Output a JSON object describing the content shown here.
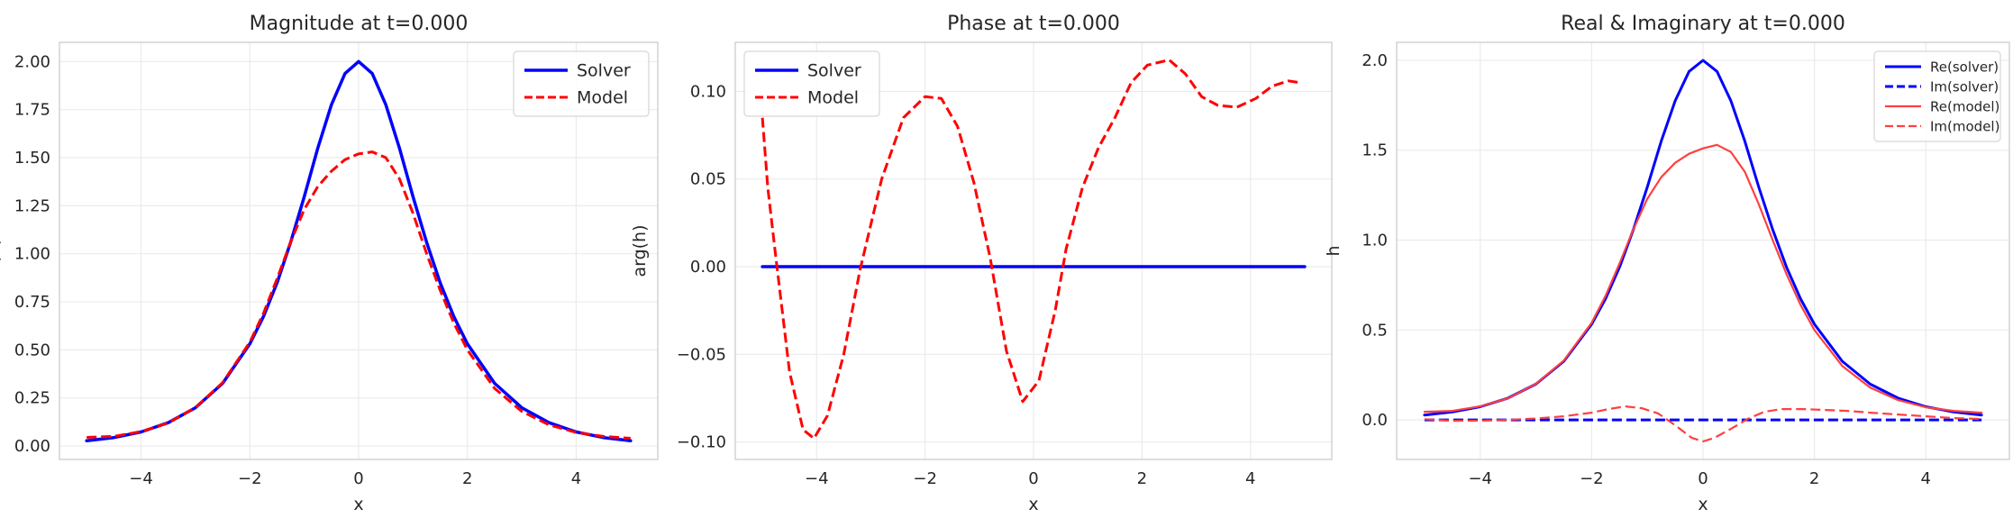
{
  "chart_data": [
    {
      "type": "line",
      "title": "Magnitude at t=0.000",
      "xlabel": "x",
      "ylabel": "|h|",
      "xlim": [
        -5.5,
        5.5
      ],
      "ylim": [
        -0.07,
        2.1
      ],
      "xticks": [
        -4,
        -2,
        0,
        2,
        4
      ],
      "xtick_labels": [
        "−4",
        "−2",
        "0",
        "2",
        "4"
      ],
      "yticks": [
        0,
        0.25,
        0.5,
        0.75,
        1.0,
        1.25,
        1.5,
        1.75,
        2.0
      ],
      "ytick_labels": [
        "0.00",
        "0.25",
        "0.50",
        "0.75",
        "1.00",
        "1.25",
        "1.50",
        "1.75",
        "2.00"
      ],
      "grid": true,
      "legend_position": "top-right",
      "series": [
        {
          "name": "Solver",
          "color": "#0000ff",
          "dash": "solid",
          "width": 3.5,
          "x": [
            -5,
            -4.5,
            -4,
            -3.5,
            -3,
            -2.5,
            -2,
            -1.75,
            -1.5,
            -1.25,
            -1,
            -0.75,
            -0.5,
            -0.25,
            0,
            0.25,
            0.5,
            0.75,
            1,
            1.25,
            1.5,
            1.75,
            2,
            2.5,
            3,
            3.5,
            4,
            4.5,
            5
          ],
          "y": [
            0.027,
            0.044,
            0.073,
            0.121,
            0.199,
            0.326,
            0.532,
            0.674,
            0.849,
            1.059,
            1.296,
            1.55,
            1.775,
            1.938,
            2.0,
            1.938,
            1.775,
            1.55,
            1.296,
            1.059,
            0.849,
            0.674,
            0.532,
            0.326,
            0.199,
            0.121,
            0.073,
            0.044,
            0.027
          ]
        },
        {
          "name": "Model",
          "color": "#ff0000",
          "dash": "dashed",
          "width": 3,
          "x": [
            -5,
            -4.5,
            -4,
            -3.5,
            -3,
            -2.5,
            -2,
            -1.75,
            -1.5,
            -1.25,
            -1,
            -0.75,
            -0.5,
            -0.25,
            0,
            0.25,
            0.5,
            0.75,
            1,
            1.25,
            1.5,
            1.75,
            2,
            2.5,
            3,
            3.5,
            4,
            4.5,
            5
          ],
          "y": [
            0.045,
            0.05,
            0.075,
            0.12,
            0.2,
            0.33,
            0.54,
            0.69,
            0.87,
            1.06,
            1.23,
            1.35,
            1.43,
            1.49,
            1.52,
            1.53,
            1.5,
            1.39,
            1.21,
            1.0,
            0.81,
            0.64,
            0.5,
            0.3,
            0.18,
            0.11,
            0.07,
            0.05,
            0.04
          ]
        }
      ]
    },
    {
      "type": "line",
      "title": "Phase at t=0.000",
      "xlabel": "x",
      "ylabel": "arg(h)",
      "xlim": [
        -5.5,
        5.5
      ],
      "ylim": [
        -0.11,
        0.128
      ],
      "xticks": [
        -4,
        -2,
        0,
        2,
        4
      ],
      "xtick_labels": [
        "−4",
        "−2",
        "0",
        "2",
        "4"
      ],
      "yticks": [
        -0.1,
        -0.05,
        0,
        0.05,
        0.1
      ],
      "ytick_labels": [
        "−0.10",
        "−0.05",
        "0.00",
        "0.05",
        "0.10"
      ],
      "grid": true,
      "legend_position": "top-left",
      "series": [
        {
          "name": "Solver",
          "color": "#0000ff",
          "dash": "solid",
          "width": 3.5,
          "x": [
            -5,
            5
          ],
          "y": [
            0,
            0
          ]
        },
        {
          "name": "Model",
          "color": "#ff0000",
          "dash": "dashed",
          "width": 3,
          "x": [
            -5,
            -4.9,
            -4.75,
            -4.5,
            -4.25,
            -4.05,
            -3.8,
            -3.5,
            -3.2,
            -2.8,
            -2.4,
            -2.0,
            -1.7,
            -1.4,
            -1.1,
            -0.8,
            -0.5,
            -0.2,
            0.1,
            0.4,
            0.6,
            0.9,
            1.2,
            1.5,
            1.8,
            2.1,
            2.5,
            2.8,
            3.1,
            3.4,
            3.75,
            4.1,
            4.4,
            4.7,
            4.9
          ],
          "y": [
            0.085,
            0.045,
            0.005,
            -0.06,
            -0.093,
            -0.098,
            -0.085,
            -0.05,
            -0.002,
            0.05,
            0.085,
            0.097,
            0.096,
            0.08,
            0.048,
            0.005,
            -0.048,
            -0.077,
            -0.065,
            -0.025,
            0.01,
            0.045,
            0.068,
            0.085,
            0.105,
            0.115,
            0.118,
            0.11,
            0.097,
            0.092,
            0.091,
            0.096,
            0.103,
            0.106,
            0.105
          ]
        }
      ]
    },
    {
      "type": "line",
      "title": "Real & Imaginary at t=0.000",
      "xlabel": "x",
      "ylabel": "h",
      "xlim": [
        -5.5,
        5.5
      ],
      "ylim": [
        -0.22,
        2.1
      ],
      "xticks": [
        -4,
        -2,
        0,
        2,
        4
      ],
      "xtick_labels": [
        "−4",
        "−2",
        "0",
        "2",
        "4"
      ],
      "yticks": [
        0,
        0.5,
        1.0,
        1.5,
        2.0
      ],
      "ytick_labels": [
        "0.0",
        "0.5",
        "1.0",
        "1.5",
        "2.0"
      ],
      "grid": true,
      "legend_position": "top-right",
      "series": [
        {
          "name": "Re(solver)",
          "color": "#0000ff",
          "dash": "solid",
          "width": 3,
          "x": [
            -5,
            -4.5,
            -4,
            -3.5,
            -3,
            -2.5,
            -2,
            -1.75,
            -1.5,
            -1.25,
            -1,
            -0.75,
            -0.5,
            -0.25,
            0,
            0.25,
            0.5,
            0.75,
            1,
            1.25,
            1.5,
            1.75,
            2,
            2.5,
            3,
            3.5,
            4,
            4.5,
            5
          ],
          "y": [
            0.027,
            0.044,
            0.073,
            0.121,
            0.199,
            0.326,
            0.532,
            0.674,
            0.849,
            1.059,
            1.296,
            1.55,
            1.775,
            1.938,
            2.0,
            1.938,
            1.775,
            1.55,
            1.296,
            1.059,
            0.849,
            0.674,
            0.532,
            0.326,
            0.199,
            0.121,
            0.073,
            0.044,
            0.027
          ]
        },
        {
          "name": "Im(solver)",
          "color": "#0000ff",
          "dash": "dashed",
          "width": 3,
          "x": [
            -5,
            5
          ],
          "y": [
            0,
            0
          ]
        },
        {
          "name": "Re(model)",
          "color": "#ff4040",
          "dash": "solid",
          "width": 2.2,
          "x": [
            -5,
            -4.5,
            -4,
            -3.5,
            -3,
            -2.5,
            -2,
            -1.75,
            -1.5,
            -1.25,
            -1,
            -0.75,
            -0.5,
            -0.25,
            0,
            0.25,
            0.5,
            0.75,
            1,
            1.25,
            1.5,
            1.75,
            2,
            2.5,
            3,
            3.5,
            4,
            4.5,
            5
          ],
          "y": [
            0.045,
            0.05,
            0.075,
            0.12,
            0.2,
            0.33,
            0.54,
            0.69,
            0.87,
            1.06,
            1.23,
            1.35,
            1.43,
            1.48,
            1.51,
            1.53,
            1.49,
            1.38,
            1.2,
            1.0,
            0.81,
            0.64,
            0.5,
            0.3,
            0.18,
            0.11,
            0.07,
            0.05,
            0.04
          ]
        },
        {
          "name": "Im(model)",
          "color": "#ff4040",
          "dash": "dashed",
          "width": 2.2,
          "x": [
            -5,
            -4.5,
            -4,
            -3.5,
            -3,
            -2.5,
            -2,
            -1.7,
            -1.4,
            -1.1,
            -0.8,
            -0.5,
            -0.2,
            0,
            0.2,
            0.5,
            0.8,
            1.1,
            1.4,
            1.8,
            2.2,
            2.6,
            3,
            3.5,
            4,
            4.5,
            5
          ],
          "y": [
            0.004,
            -0.005,
            -0.004,
            0.0,
            0.008,
            0.02,
            0.04,
            0.06,
            0.075,
            0.065,
            0.035,
            -0.03,
            -0.1,
            -0.12,
            -0.1,
            -0.05,
            0.005,
            0.045,
            0.06,
            0.06,
            0.055,
            0.05,
            0.04,
            0.03,
            0.02,
            0.01,
            0.005
          ]
        }
      ]
    }
  ]
}
